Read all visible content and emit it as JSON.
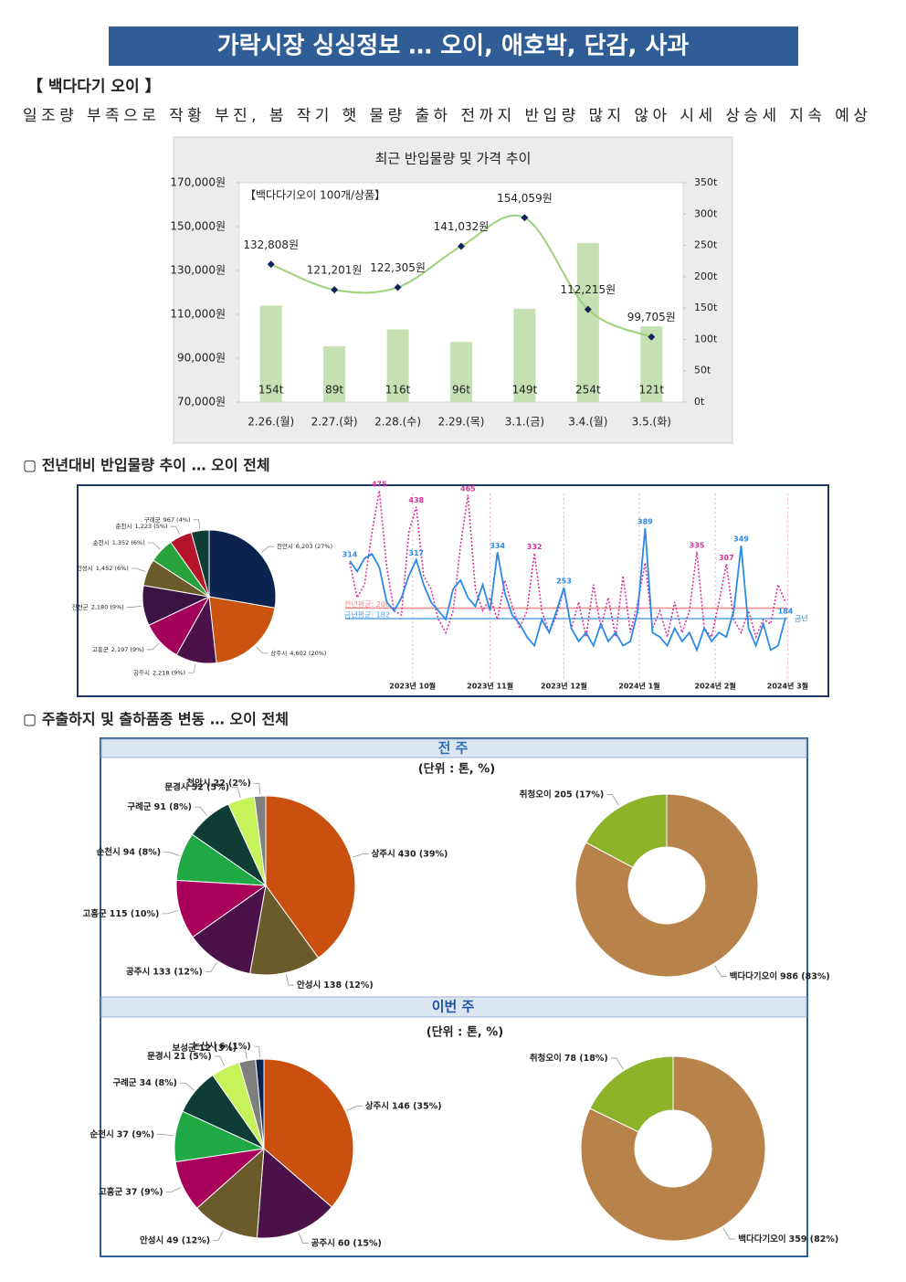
{
  "header": {
    "title": "가락시장 싱싱정보 … 오이, 애호박, 단감, 사과"
  },
  "section1": {
    "label": "【 백다다기 오이 】",
    "summary": "일조량 부족으로 작황 부진, 봄 작기 햇 물량 출하 전까지 반입량 많지 않아 시세 상승세 지속 예상"
  },
  "section2": {
    "heading": "▢ 전년대비 반입물량 추이 … 오이 전체"
  },
  "section3": {
    "heading": "▢ 주출하지 및 출하품종 변동 … 오이 전체",
    "prev_week": {
      "title": "전 주",
      "unit": "(단위 : 톤, %)"
    },
    "this_week": {
      "title": "이번 주",
      "unit": "(단위 : 톤, %)"
    }
  },
  "chart_data": [
    {
      "type": "combo",
      "title": "최근 반입물량 및 가격 추이",
      "annotation": "【백다다기오이 100개/상품】",
      "categories": [
        "2.26.(월)",
        "2.27.(화)",
        "2.28.(수)",
        "2.29.(목)",
        "3.1.(금)",
        "3.4.(월)",
        "3.5.(화)"
      ],
      "series": [
        {
          "kind": "bar",
          "axis": "y2",
          "color": "#c5e0b3",
          "values": [
            154,
            89,
            116,
            96,
            149,
            254,
            121
          ],
          "value_labels": [
            "154t",
            "89t",
            "116t",
            "96t",
            "149t",
            "254t",
            "121t"
          ]
        },
        {
          "kind": "line",
          "color": "#9bd27a",
          "marker_color": "#10265a",
          "values": [
            132808,
            121201,
            122305,
            141032,
            154059,
            112215,
            99705
          ],
          "value_labels": [
            "132,808원",
            "121,201원",
            "122,305원",
            "141,032원",
            "154,059원",
            "112,215원",
            "99,705원"
          ]
        }
      ],
      "ylim": [
        70000,
        170000
      ],
      "yticks": [
        {
          "value": 70000,
          "label": "70,000원"
        },
        {
          "value": 90000,
          "label": "90,000원"
        },
        {
          "value": 110000,
          "label": "110,000원"
        },
        {
          "value": 130000,
          "label": "130,000원"
        },
        {
          "value": 150000,
          "label": "150,000원"
        },
        {
          "value": 170000,
          "label": "170,000원"
        }
      ],
      "y2lim": [
        0,
        350
      ],
      "y2ticks": [
        {
          "value": 0,
          "label": "0t"
        },
        {
          "value": 50,
          "label": "50t"
        },
        {
          "value": 100,
          "label": "100t"
        },
        {
          "value": 150,
          "label": "150t"
        },
        {
          "value": 200,
          "label": "200t"
        },
        {
          "value": 250,
          "label": "250t"
        },
        {
          "value": 300,
          "label": "300t"
        },
        {
          "value": 350,
          "label": "350t"
        }
      ]
    },
    {
      "type": "pie",
      "categories": [
        "천안시",
        "상주시",
        "공주시",
        "고흥군",
        "진천군",
        "안성시",
        "순천시",
        "춘천시",
        "구례군"
      ],
      "values": [
        6203,
        4602,
        2218,
        2197,
        2180,
        1452,
        1352,
        1223,
        967
      ],
      "value_labels": [
        "6,203 (27%)",
        "4,602 (20%)",
        "2,218 (9%)",
        "2,197 (9%)",
        "2,180 (9%)",
        "1,452 (6%)",
        "1,352 (6%)",
        "1,223 (5%)",
        "967 (4%)"
      ],
      "colors": [
        "#0c2350",
        "#c9530f",
        "#4a1248",
        "#a3005b",
        "#3b1343",
        "#6b5a2a",
        "#27a23c",
        "#b4152a",
        "#0d3d35"
      ]
    },
    {
      "type": "line",
      "series": [
        {
          "color": "#d6359a",
          "dashed": true,
          "values": [
            310,
            230,
            260,
            380,
            475,
            300,
            200,
            190,
            380,
            438,
            280,
            250,
            180,
            150,
            200,
            350,
            465,
            250,
            200,
            230,
            180,
            270,
            210,
            160,
            200,
            332,
            200,
            150,
            190,
            250,
            160,
            220,
            140,
            260,
            160,
            230,
            140,
            280,
            150,
            220,
            310,
            160,
            200,
            140,
            220,
            150,
            200,
            335,
            160,
            140,
            220,
            307,
            180,
            150,
            200,
            140,
            180,
            170,
            260,
            220
          ],
          "labeled_points": [
            4,
            9,
            16,
            25,
            47,
            51
          ]
        },
        {
          "name": "금년",
          "color": "#2b8ae6",
          "dashed": false,
          "values": [
            314,
            290,
            320,
            330,
            300,
            220,
            200,
            230,
            280,
            317,
            260,
            220,
            200,
            180,
            250,
            270,
            230,
            210,
            260,
            200,
            334,
            240,
            190,
            170,
            140,
            120,
            180,
            150,
            200,
            253,
            160,
            130,
            150,
            120,
            170,
            130,
            150,
            120,
            130,
            200,
            389,
            150,
            140,
            120,
            160,
            130,
            150,
            110,
            160,
            130,
            150,
            140,
            200,
            349,
            160,
            120,
            170,
            110,
            120,
            184
          ],
          "labeled_points": [
            0,
            9,
            20,
            29,
            40,
            53,
            59
          ]
        }
      ],
      "reference_lines": [
        {
          "label": "전년평균: 206",
          "value": 206,
          "color": "#f08a8a"
        },
        {
          "label": "금년평균: 182",
          "value": 182,
          "color": "#5aa6e6"
        }
      ],
      "xticks": [
        {
          "value": 8.5,
          "label": "2023년 10월"
        },
        {
          "value": 19,
          "label": "2023년 11월"
        },
        {
          "value": 29,
          "label": "2023년 12월"
        },
        {
          "value": 39.2,
          "label": "2024년 1월"
        },
        {
          "value": 49.5,
          "label": "2024년 2월"
        },
        {
          "value": 59.3,
          "label": "2024년 3월"
        }
      ]
    },
    {
      "type": "pie",
      "categories": [
        "상주시",
        "안성시",
        "공주시",
        "고흥군",
        "순천시",
        "구례군",
        "문경시",
        "천안시"
      ],
      "values": [
        430,
        138,
        133,
        115,
        94,
        91,
        52,
        22
      ],
      "value_labels": [
        "430 (39%)",
        "138 (12%)",
        "133 (12%)",
        "115 (10%)",
        "94 (8%)",
        "91 (8%)",
        "52 (5%)",
        "22 (2%)"
      ],
      "colors": [
        "#c9500f",
        "#6b5a2a",
        "#4a1248",
        "#a8005a",
        "#20a845",
        "#0d3d35",
        "#c6f25a",
        "#7f7f7f"
      ]
    },
    {
      "type": "donut",
      "categories": [
        "백다다기오이",
        "취청오이"
      ],
      "values": [
        986,
        205
      ],
      "value_labels": [
        "986 (83%)",
        "205 (17%)"
      ],
      "colors": [
        "#b8834a",
        "#8db32a"
      ]
    },
    {
      "type": "pie",
      "categories": [
        "상주시",
        "공주시",
        "안성시",
        "고흥군",
        "순천시",
        "구례군",
        "문경시",
        "보성군",
        "논산시"
      ],
      "values": [
        146,
        60,
        49,
        37,
        37,
        34,
        21,
        12,
        6
      ],
      "value_labels": [
        "146 (35%)",
        "60 (15%)",
        "49 (12%)",
        "37 (9%)",
        "37 (9%)",
        "34 (8%)",
        "21 (5%)",
        "12 (3%)",
        "6 (1%)"
      ],
      "colors": [
        "#c9500f",
        "#4a1248",
        "#6b5a2a",
        "#a8005a",
        "#20a845",
        "#0d3d35",
        "#c6f25a",
        "#7f7f7f",
        "#0c2350"
      ]
    },
    {
      "type": "donut",
      "categories": [
        "백다다기오이",
        "취청오이"
      ],
      "values": [
        359,
        78
      ],
      "value_labels": [
        "359 (82%)",
        "78 (18%)"
      ],
      "colors": [
        "#b8834a",
        "#8db32a"
      ]
    }
  ]
}
